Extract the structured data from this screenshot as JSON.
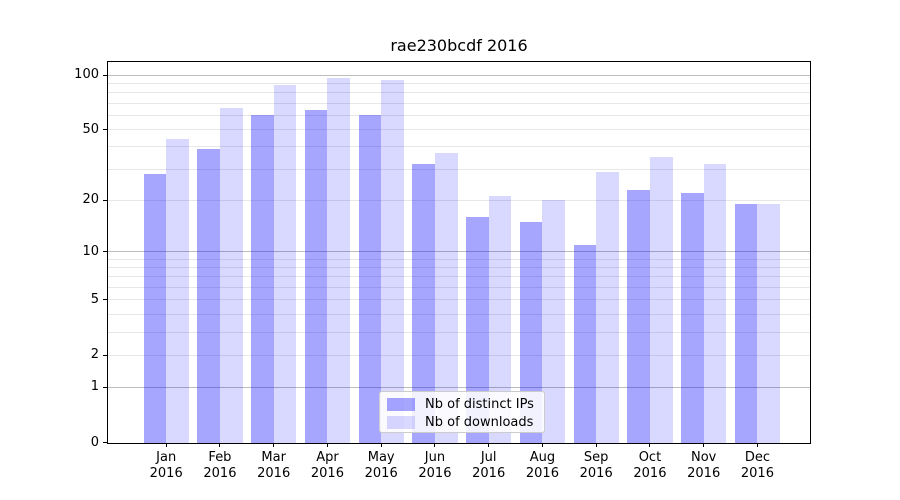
{
  "title": "rae230bcdf 2016",
  "chart_data": {
    "type": "bar",
    "title": "rae230bcdf 2016",
    "xlabel": "",
    "ylabel": "",
    "categories": [
      "Jan 2016",
      "Feb 2016",
      "Mar 2016",
      "Apr 2016",
      "May 2016",
      "Jun 2016",
      "Jul 2016",
      "Aug 2016",
      "Sep 2016",
      "Oct 2016",
      "Nov 2016",
      "Dec 2016"
    ],
    "series": [
      {
        "name": "Nb of distinct IPs",
        "color": "rgba(0,0,255,0.35)",
        "values": [
          28,
          39,
          60,
          64,
          60,
          32,
          16,
          15,
          11,
          23,
          22,
          19
        ]
      },
      {
        "name": "Nb of downloads",
        "color": "rgba(0,0,255,0.15)",
        "values": [
          44,
          66,
          88,
          96,
          94,
          37,
          21,
          20,
          29,
          35,
          32,
          19
        ]
      }
    ],
    "yscale": "log1p",
    "ylim": [
      0,
      120
    ],
    "yticks": [
      0,
      1,
      2,
      5,
      10,
      20,
      50,
      100
    ],
    "ytick_labels": [
      "0",
      "1",
      "2",
      "5",
      "10",
      "20",
      "50",
      "100"
    ],
    "major_gridlines": [
      1,
      10,
      100
    ],
    "minor_gridlines": [
      2,
      3,
      4,
      5,
      6,
      7,
      8,
      9,
      20,
      30,
      40,
      50,
      60,
      70,
      80,
      90
    ],
    "grid": "horizontal major+minor",
    "legend_position": "lower center"
  },
  "colors": {
    "bar_distinct_ips": "rgba(0,0,255,0.35)",
    "bar_downloads": "rgba(0,0,255,0.15)",
    "grid_major": "#bdbdbd",
    "grid_minor": "#e7e7e7",
    "spine": "#000000",
    "background": "#ffffff"
  }
}
